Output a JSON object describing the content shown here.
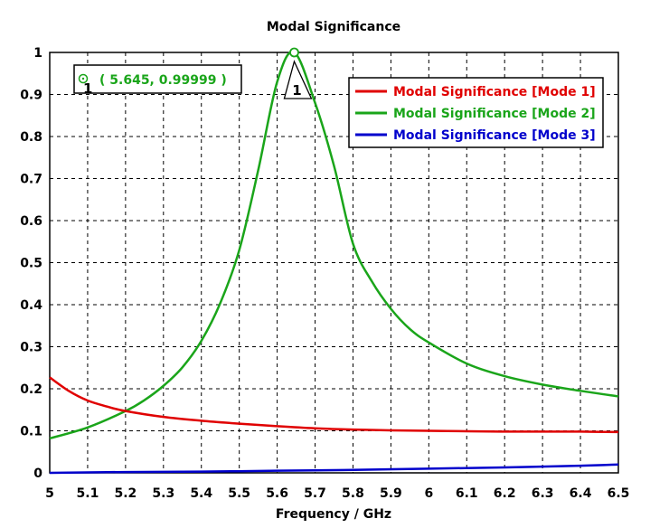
{
  "chart_data": {
    "type": "line",
    "title": "Modal Significance",
    "xlabel": "Frequency / GHz",
    "ylabel": "",
    "xlim": [
      5,
      6.5
    ],
    "ylim": [
      0,
      1
    ],
    "xticks": [
      "5",
      "5.1",
      "5.2",
      "5.3",
      "5.4",
      "5.5",
      "5.6",
      "5.7",
      "5.8",
      "5.9",
      "6",
      "6.1",
      "6.2",
      "6.3",
      "6.4",
      "6.5"
    ],
    "yticks": [
      "0",
      "0.1",
      "0.2",
      "0.3",
      "0.4",
      "0.5",
      "0.6",
      "0.7",
      "0.8",
      "0.9",
      "1"
    ],
    "grid": true,
    "legend_position": "top-right",
    "series": [
      {
        "name": "Modal Significance [Mode 1]",
        "color": "#e00000",
        "x": [
          5.0,
          5.05,
          5.1,
          5.15,
          5.2,
          5.3,
          5.4,
          5.5,
          5.6,
          5.7,
          5.8,
          5.9,
          6.0,
          6.1,
          6.2,
          6.3,
          6.4,
          6.5
        ],
        "y": [
          0.227,
          0.195,
          0.172,
          0.158,
          0.147,
          0.133,
          0.124,
          0.117,
          0.111,
          0.106,
          0.103,
          0.101,
          0.1,
          0.099,
          0.098,
          0.098,
          0.098,
          0.097
        ]
      },
      {
        "name": "Modal Significance [Mode 2]",
        "color": "#1aa51a",
        "x": [
          5.0,
          5.1,
          5.2,
          5.25,
          5.3,
          5.35,
          5.4,
          5.45,
          5.5,
          5.55,
          5.6,
          5.645,
          5.7,
          5.75,
          5.8,
          5.85,
          5.9,
          5.95,
          6.0,
          6.1,
          6.2,
          6.3,
          6.4,
          6.5
        ],
        "y": [
          0.082,
          0.108,
          0.147,
          0.173,
          0.207,
          0.251,
          0.314,
          0.404,
          0.53,
          0.72,
          0.93,
          0.99999,
          0.88,
          0.73,
          0.545,
          0.455,
          0.39,
          0.342,
          0.31,
          0.26,
          0.23,
          0.21,
          0.195,
          0.182
        ]
      },
      {
        "name": "Modal Significance [Mode 3]",
        "color": "#0000cc",
        "x": [
          5.0,
          5.2,
          5.4,
          5.6,
          5.8,
          6.0,
          6.2,
          6.4,
          6.5
        ],
        "y": [
          0.0,
          0.002,
          0.003,
          0.005,
          0.007,
          0.01,
          0.013,
          0.017,
          0.02
        ]
      }
    ],
    "marker": {
      "id": "1",
      "series": "Modal Significance [Mode 2]",
      "x": 5.645,
      "y": 0.99999,
      "readout": "( 5.645, 0.99999 )"
    }
  }
}
